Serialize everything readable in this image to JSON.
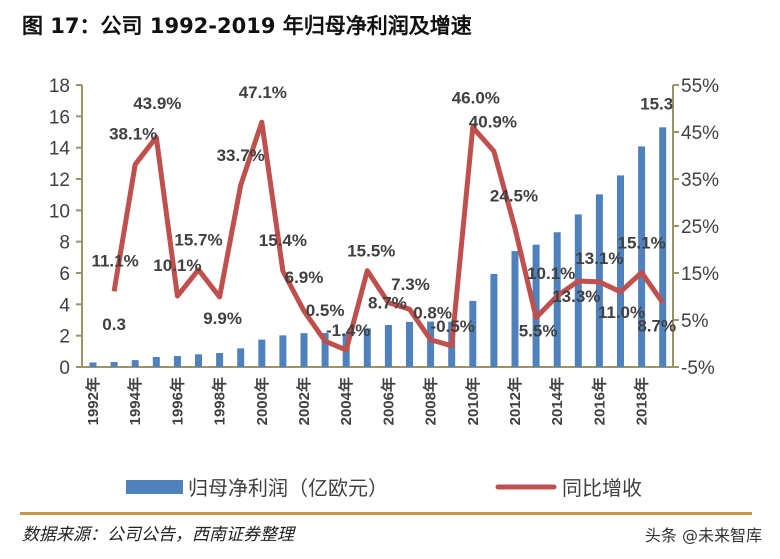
{
  "title": "图 17：公司 1992-2019 年归母净利润及增速",
  "chart_data": {
    "type": "bar+line",
    "title": "图 17：公司 1992-2019 年归母净利润及增速",
    "categories": [
      "1992年",
      "1993年",
      "1994年",
      "1995年",
      "1996年",
      "1997年",
      "1998年",
      "1999年",
      "2000年",
      "2001年",
      "2002年",
      "2003年",
      "2004年",
      "2005年",
      "2006年",
      "2007年",
      "2008年",
      "2009年",
      "2010年",
      "2011年",
      "2012年",
      "2013年",
      "2014年",
      "2015年",
      "2016年",
      "2017年",
      "2018年",
      "2019年"
    ],
    "x_tick_labels": [
      "1992年",
      "1994年",
      "1996年",
      "1998年",
      "2000年",
      "2002年",
      "2004年",
      "2006年",
      "2008年",
      "2010年",
      "2012年",
      "2014年",
      "2016年",
      "2018年"
    ],
    "series": [
      {
        "name": "归母净利润（亿欧元）",
        "type": "bar",
        "axis": "left",
        "color": "#4f81bd",
        "values": [
          0.29,
          0.32,
          0.44,
          0.64,
          0.7,
          0.81,
          0.89,
          1.19,
          1.75,
          2.02,
          2.16,
          2.17,
          2.14,
          2.47,
          2.68,
          2.88,
          2.9,
          2.89,
          4.22,
          5.94,
          7.4,
          7.81,
          8.6,
          9.74,
          11.02,
          12.23,
          14.08,
          15.3
        ],
        "data_labels": {
          "1993年": "0.3",
          "2019年": "15.3"
        }
      },
      {
        "name": "同比增收",
        "type": "line",
        "axis": "right",
        "color": "#c0504d",
        "values": [
          null,
          11.1,
          38.1,
          43.9,
          10.1,
          15.7,
          9.9,
          33.7,
          47.1,
          15.4,
          6.9,
          0.5,
          -1.4,
          15.5,
          8.7,
          7.3,
          0.8,
          -0.5,
          46.0,
          40.9,
          24.5,
          5.5,
          10.1,
          13.3,
          13.1,
          11.0,
          15.1,
          8.7
        ],
        "data_labels": [
          "11.1%",
          "38.1%",
          "43.9%",
          "10.1%",
          "15.7%",
          "9.9%",
          "33.7%",
          "47.1%",
          "15.4%",
          "6.9%",
          "0.5%",
          "-1.4%",
          "15.5%",
          "8.7%",
          "7.3%",
          "0.8%",
          "-0.5%",
          "46.0%",
          "40.9%",
          "24.5%",
          "5.5%",
          "10.1%",
          "13.3%",
          "13.1%",
          "11.0%",
          "15.1%",
          "8.7%"
        ]
      }
    ],
    "y_left": {
      "ylim": [
        0,
        18
      ],
      "ticks": [
        "0",
        "2",
        "4",
        "6",
        "8",
        "10",
        "12",
        "14",
        "16",
        "18"
      ]
    },
    "y_right": {
      "ylim": [
        -5,
        55
      ],
      "ticks": [
        "-5%",
        "5%",
        "15%",
        "25%",
        "35%",
        "45%",
        "55%"
      ]
    },
    "grid": false,
    "legend": "bottom"
  },
  "source": "数据来源：公司公告，西南证券整理",
  "watermark": "头条 @未来智库"
}
